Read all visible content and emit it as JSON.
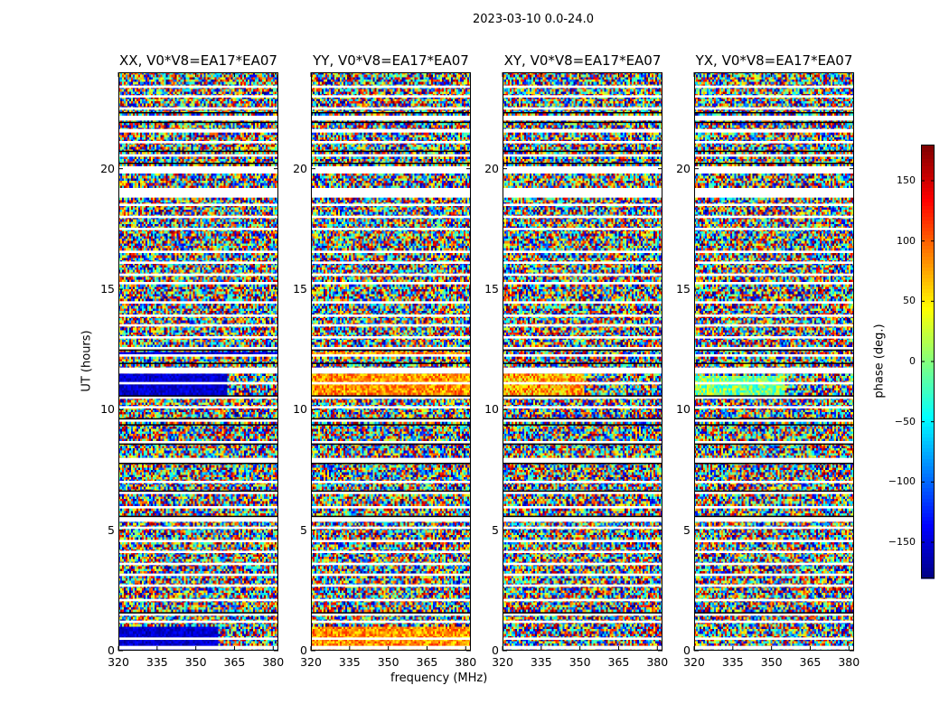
{
  "figure": {
    "suptitle": "2023-03-10 0.0-24.0"
  },
  "chart_data": {
    "type": "heatmap",
    "title": "2023-03-10 0.0-24.0",
    "xlabel": "frequency (MHz)",
    "ylabel": "UT (hours)",
    "xlim": [
      320,
      382
    ],
    "ylim": [
      0,
      24
    ],
    "xticks": [
      "320",
      "335",
      "350",
      "365",
      "380"
    ],
    "xtick_values": [
      320,
      335,
      350,
      365,
      380
    ],
    "yticks": [
      "0",
      "5",
      "10",
      "15",
      "20"
    ],
    "ytick_values": [
      0,
      5,
      10,
      15,
      20
    ],
    "panels": [
      {
        "title": "XX, V0*V8=EA17*EA07",
        "pol": "XX"
      },
      {
        "title": "YY, V0*V8=EA17*EA07",
        "pol": "YY"
      },
      {
        "title": "XY, V0*V8=EA17*EA07",
        "pol": "XY"
      },
      {
        "title": "YX, V0*V8=EA17*EA07",
        "pol": "YX"
      }
    ],
    "colorbar": {
      "label": "phase (deg.)",
      "range": [
        -180,
        180
      ],
      "ticks": [
        "150",
        "100",
        "50",
        "0",
        "−50",
        "−100",
        "−150"
      ],
      "tick_values": [
        150,
        100,
        50,
        0,
        -50,
        -100,
        -150
      ],
      "colormap": "jet"
    },
    "flagged_bands_hours": [
      [
        0.05,
        0.2
      ],
      [
        0.45,
        0.55
      ],
      [
        1.15,
        1.25
      ],
      [
        1.45,
        1.55
      ],
      [
        2.05,
        2.15
      ],
      [
        2.65,
        2.75
      ],
      [
        3.1,
        3.2
      ],
      [
        3.55,
        3.65
      ],
      [
        4.05,
        4.15
      ],
      [
        4.5,
        4.6
      ],
      [
        5.05,
        5.15
      ],
      [
        5.35,
        5.55
      ],
      [
        5.9,
        6.0
      ],
      [
        6.5,
        6.6
      ],
      [
        6.95,
        7.05
      ],
      [
        7.8,
        8.0
      ],
      [
        8.6,
        8.7
      ],
      [
        9.5,
        9.6
      ],
      [
        10.05,
        10.15
      ],
      [
        10.45,
        10.55
      ],
      [
        11.05,
        11.15
      ],
      [
        11.5,
        11.75
      ],
      [
        12.2,
        12.3
      ],
      [
        12.5,
        12.6
      ],
      [
        12.95,
        13.05
      ],
      [
        13.45,
        13.55
      ],
      [
        13.85,
        13.95
      ],
      [
        14.4,
        14.5
      ],
      [
        15.2,
        15.3
      ],
      [
        15.55,
        15.65
      ],
      [
        16.05,
        16.15
      ],
      [
        16.5,
        16.6
      ],
      [
        17.45,
        17.55
      ],
      [
        17.95,
        18.05
      ],
      [
        18.45,
        18.55
      ],
      [
        18.8,
        19.2
      ],
      [
        19.8,
        20.1
      ],
      [
        20.5,
        20.6
      ],
      [
        21.05,
        21.15
      ],
      [
        21.5,
        21.65
      ],
      [
        22.0,
        22.2
      ],
      [
        22.45,
        22.55
      ],
      [
        22.95,
        23.05
      ],
      [
        23.35,
        23.45
      ]
    ],
    "dark_band_hours": [
      [
        1.55,
        1.6
      ],
      [
        5.55,
        5.6
      ],
      [
        6.6,
        6.65
      ],
      [
        7.75,
        7.8
      ],
      [
        8.55,
        8.6
      ],
      [
        9.35,
        9.4
      ],
      [
        9.6,
        9.65
      ],
      [
        10.55,
        10.6
      ],
      [
        11.9,
        11.95
      ],
      [
        12.45,
        12.5
      ],
      [
        20.2,
        20.25
      ],
      [
        20.7,
        20.75
      ],
      [
        21.9,
        21.95
      ],
      [
        22.3,
        22.35
      ]
    ]
  }
}
